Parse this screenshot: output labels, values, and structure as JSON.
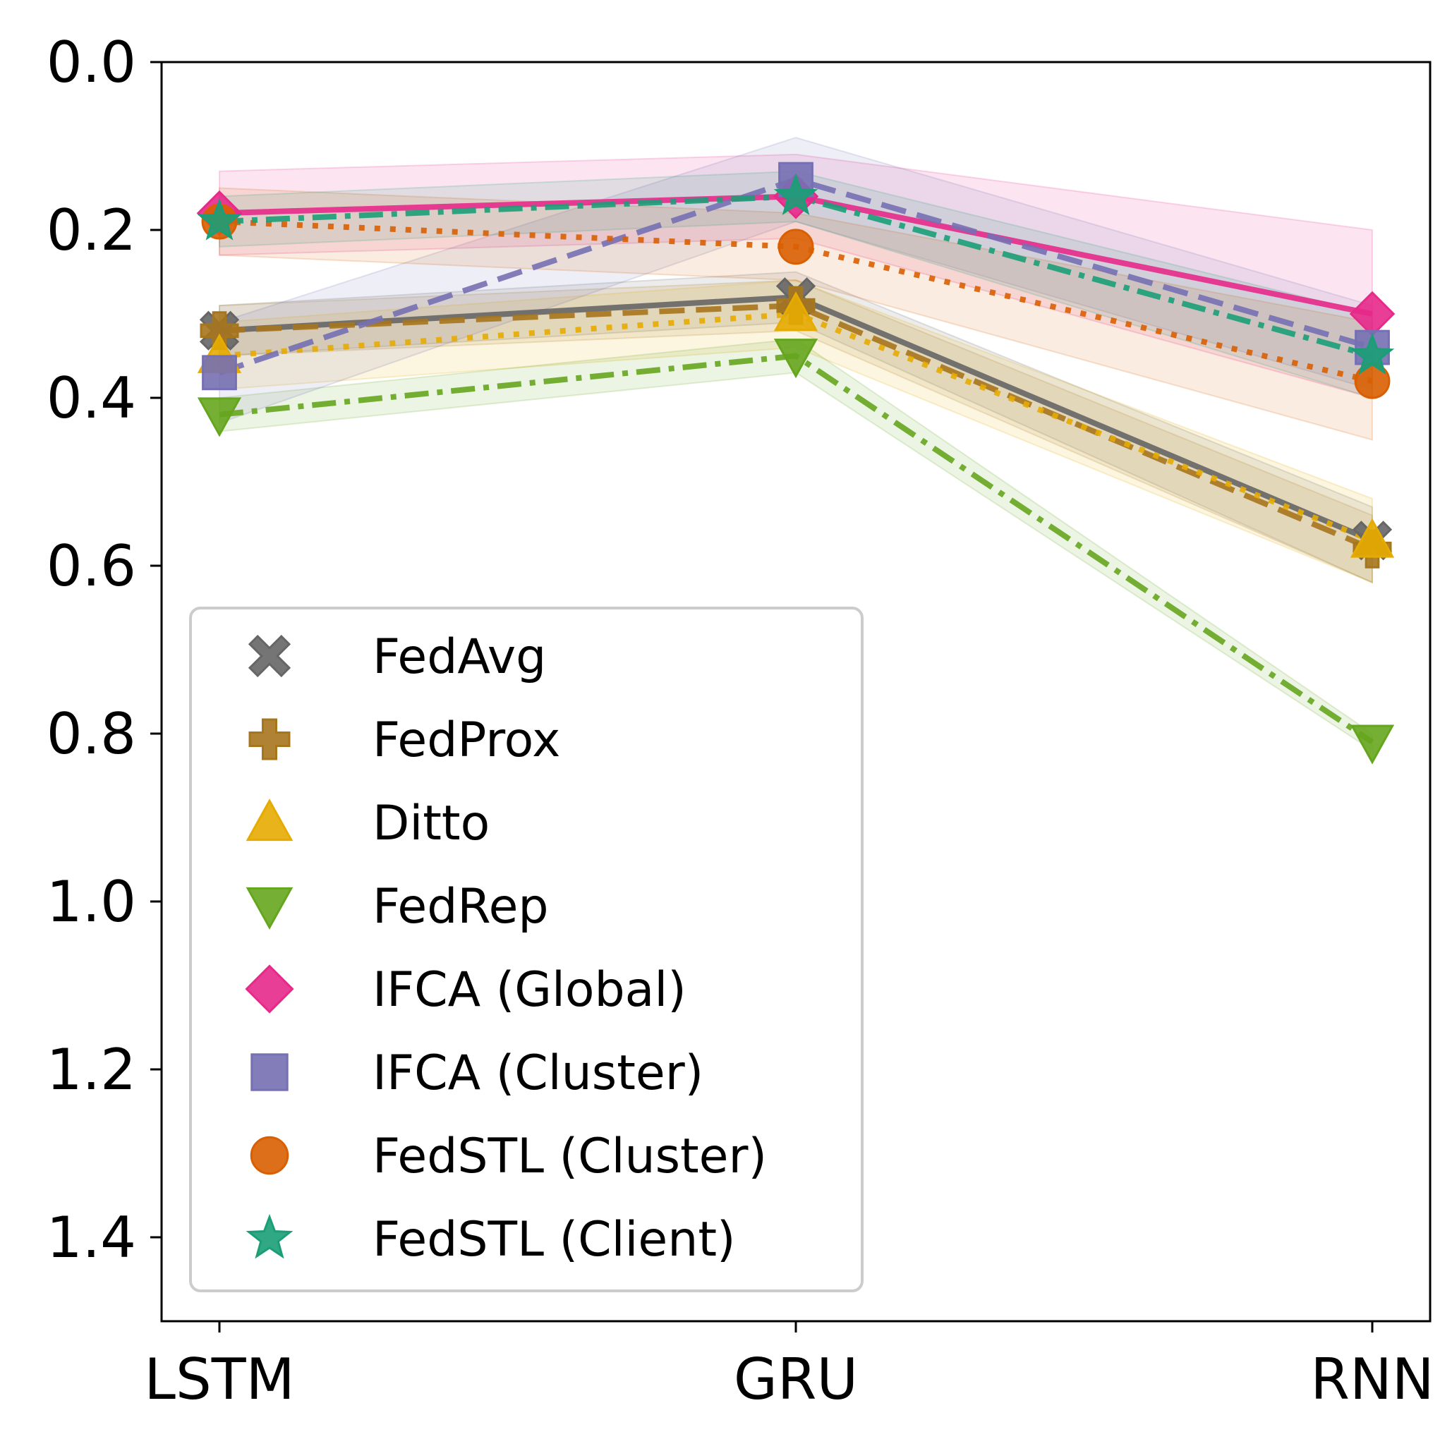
{
  "chart_data": {
    "type": "line",
    "title": "",
    "xlabel": "",
    "ylabel": "",
    "categories": [
      "LSTM",
      "GRU",
      "RNN"
    ],
    "ylim": [
      1.5,
      0.0
    ],
    "y_inverted": true,
    "yticks": [
      0.0,
      0.2,
      0.4,
      0.6,
      0.8,
      1.0,
      1.2,
      1.4
    ],
    "ytick_labels": [
      "0.0",
      "0.2",
      "0.4",
      "0.6",
      "0.8",
      "1.0",
      "1.2",
      "1.4"
    ],
    "legend_position": "lower-left",
    "series": [
      {
        "name": "FedAvg",
        "values": [
          0.32,
          0.28,
          0.57
        ],
        "band_low": [
          0.29,
          0.25,
          0.53
        ],
        "band_high": [
          0.35,
          0.31,
          0.62
        ],
        "color": "#666666",
        "marker": "x",
        "dash": "solid"
      },
      {
        "name": "FedProx",
        "values": [
          0.32,
          0.29,
          0.58
        ],
        "band_low": [
          0.29,
          0.26,
          0.54
        ],
        "band_high": [
          0.35,
          0.32,
          0.62
        ],
        "color": "#a6761d",
        "marker": "plus",
        "dash": "dashed"
      },
      {
        "name": "Ditto",
        "values": [
          0.35,
          0.3,
          0.57
        ],
        "band_low": [
          0.31,
          0.26,
          0.52
        ],
        "band_high": [
          0.39,
          0.34,
          0.62
        ],
        "color": "#e6ab02",
        "marker": "triangle-up",
        "dash": "dotted"
      },
      {
        "name": "FedRep",
        "values": [
          0.42,
          0.35,
          0.81
        ],
        "band_low": [
          0.4,
          0.33,
          0.8
        ],
        "band_high": [
          0.44,
          0.37,
          0.82
        ],
        "color": "#66a61e",
        "marker": "triangle-down",
        "dash": "dashdot"
      },
      {
        "name": "IFCA (Global)",
        "values": [
          0.18,
          0.16,
          0.3
        ],
        "band_low": [
          0.13,
          0.11,
          0.2
        ],
        "band_high": [
          0.23,
          0.21,
          0.4
        ],
        "color": "#e7298a",
        "marker": "diamond",
        "dash": "solid"
      },
      {
        "name": "IFCA (Cluster)",
        "values": [
          0.37,
          0.14,
          0.34
        ],
        "band_low": [
          0.31,
          0.09,
          0.29
        ],
        "band_high": [
          0.43,
          0.19,
          0.39
        ],
        "color": "#7570b3",
        "marker": "square",
        "dash": "dashed"
      },
      {
        "name": "FedSTL (Cluster)",
        "values": [
          0.19,
          0.22,
          0.38
        ],
        "band_low": [
          0.15,
          0.18,
          0.31
        ],
        "band_high": [
          0.23,
          0.26,
          0.45
        ],
        "color": "#d95f02",
        "marker": "circle",
        "dash": "dotted"
      },
      {
        "name": "FedSTL (Client)",
        "values": [
          0.19,
          0.16,
          0.35
        ],
        "band_low": [
          0.16,
          0.13,
          0.3
        ],
        "band_high": [
          0.22,
          0.19,
          0.4
        ],
        "color": "#1b9e77",
        "marker": "star",
        "dash": "dashdot"
      }
    ]
  }
}
